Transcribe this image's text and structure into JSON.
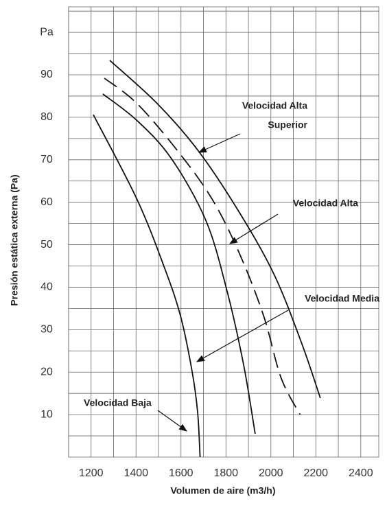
{
  "chart_data": {
    "type": "line",
    "x_label": "Volumen de aire (m3/h)",
    "y_label": "Presión estática externa (Pa)",
    "xlim": [
      1100,
      2480
    ],
    "ylim": [
      0,
      106
    ],
    "xticks": [
      1200,
      1400,
      1600,
      1800,
      2000,
      2200,
      2400
    ],
    "yticks": [
      10,
      20,
      30,
      40,
      50,
      60,
      70,
      80,
      90,
      {
        "value": 100,
        "label": "Pa"
      }
    ],
    "xminor": [
      1100,
      1300,
      1500,
      1700,
      1900,
      2100,
      2300
    ],
    "yminor": [
      5,
      15,
      25,
      35,
      45,
      55,
      65,
      75,
      85,
      95,
      105
    ],
    "grid": true,
    "series": [
      {
        "name": "Velocidad Baja",
        "color": "#111111",
        "dashed": false,
        "x": [
          1210,
          1405,
          1527,
          1598,
          1649,
          1674,
          1685
        ],
        "values": [
          80.6,
          60.6,
          44.5,
          33.2,
          20.3,
          10.6,
          0
        ]
      },
      {
        "name": "Velocidad Media",
        "color": "#111111",
        "dashed": false,
        "x": [
          1252,
          1405,
          1557,
          1710,
          1802,
          1878,
          1930
        ],
        "values": [
          85.5,
          79.2,
          70.3,
          55.8,
          39.7,
          21.9,
          5.5
        ]
      },
      {
        "name": "Velocidad Alta",
        "color": "#111111",
        "dashed": true,
        "x": [
          1259,
          1405,
          1588,
          1740,
          1862,
          1968,
          2045,
          2130
        ],
        "values": [
          89.2,
          83.2,
          71.9,
          60.6,
          47.7,
          33.2,
          18.7,
          10
        ]
      },
      {
        "name": "Velocidad Alta Superior",
        "color": "#111111",
        "dashed": false,
        "x": [
          1283,
          1495,
          1680,
          1862,
          2015,
          2137,
          2220
        ],
        "values": [
          93.4,
          83.2,
          71.9,
          57.4,
          42.9,
          26.8,
          13.9
        ]
      }
    ],
    "annotations": [
      {
        "lines": [
          "Velocidad Alta",
          "Superior"
        ]
      },
      {
        "lines": [
          "Velocidad Alta"
        ]
      },
      {
        "lines": [
          "Velocidad Media"
        ]
      },
      {
        "lines": [
          "Velocidad Baja"
        ]
      }
    ]
  }
}
